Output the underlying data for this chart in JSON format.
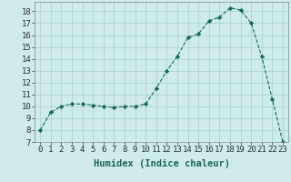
{
  "x": [
    0,
    1,
    2,
    3,
    4,
    5,
    6,
    7,
    8,
    9,
    10,
    11,
    12,
    13,
    14,
    15,
    16,
    17,
    18,
    19,
    20,
    21,
    22,
    23
  ],
  "y": [
    8,
    9.5,
    10,
    10.2,
    10.2,
    10.1,
    10,
    9.9,
    10,
    10,
    10.2,
    11.5,
    13,
    14.2,
    15.8,
    16.1,
    17.2,
    17.5,
    18.3,
    18.1,
    17.0,
    14.2,
    10.6,
    7.0
  ],
  "line_color": "#1a6b5a",
  "marker": "D",
  "marker_size": 2.2,
  "bg_color": "#ceeaea",
  "grid_color": "#aacfcf",
  "xlabel": "Humidex (Indice chaleur)",
  "xlabel_fontsize": 7.5,
  "ylim": [
    7,
    18.8
  ],
  "xlim": [
    -0.5,
    23.5
  ],
  "yticks": [
    7,
    8,
    9,
    10,
    11,
    12,
    13,
    14,
    15,
    16,
    17,
    18
  ],
  "xticks": [
    0,
    1,
    2,
    3,
    4,
    5,
    6,
    7,
    8,
    9,
    10,
    11,
    12,
    13,
    14,
    15,
    16,
    17,
    18,
    19,
    20,
    21,
    22,
    23
  ],
  "tick_fontsize": 6.5
}
